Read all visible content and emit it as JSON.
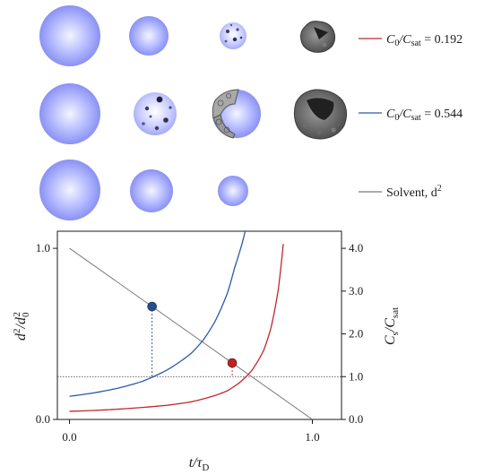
{
  "legend": [
    {
      "label_pre": "C",
      "label_sub1": "0",
      "label_mid": "/C",
      "label_sub2": "sat",
      "label_post": " = 0.192",
      "color": "#c0282b"
    },
    {
      "label_pre": "C",
      "label_sub1": "0",
      "label_mid": "/C",
      "label_sub2": "sat",
      "label_post": " = 0.544",
      "color": "#2a5aa6"
    },
    {
      "label_pre": "Solvent, d",
      "label_sup": "2",
      "color": "#7a7a7a"
    }
  ],
  "droplet_rows": [
    {
      "series": "C0/Csat = 0.192",
      "stages": [
        "smooth",
        "smooth",
        "mottled",
        "shell-cavity"
      ]
    },
    {
      "series": "C0/Csat = 0.544",
      "stages": [
        "smooth",
        "mottled",
        "cracked-shell",
        "open-shell"
      ]
    },
    {
      "series": "Solvent",
      "stages": [
        "smooth",
        "smooth",
        "smooth"
      ]
    }
  ],
  "chart_data": {
    "type": "line",
    "xlabel": {
      "main": "t/τ",
      "sub": "D"
    },
    "ylabel_left": {
      "a": "d",
      "a_sup": "2",
      "b": "/d",
      "b_sub": "0",
      "b_sup": "2"
    },
    "ylabel_right": {
      "a": "C",
      "a_sub": "s",
      "b": "/C",
      "b_sub": "sat"
    },
    "xlim": [
      -0.05,
      1.12
    ],
    "ylim_left": [
      0,
      1.1
    ],
    "ylim_right": [
      0,
      4.4
    ],
    "x_ticks": [
      "0.0",
      "1.0"
    ],
    "y_left_ticks": [
      "0.0",
      "1.0"
    ],
    "y_right_ticks": [
      "0.0",
      "1.0",
      "2.0",
      "3.0",
      "4.0"
    ],
    "series": [
      {
        "name": "Solvent, d²",
        "axis": "left",
        "color": "#7a7a7a",
        "x": [
          0.0,
          1.0
        ],
        "y": [
          1.0,
          0.0
        ]
      },
      {
        "name": "C0/Csat = 0.544",
        "axis": "right",
        "color": "#2a5aa6",
        "x": [
          0.0,
          0.1,
          0.2,
          0.3,
          0.4,
          0.5,
          0.55,
          0.6,
          0.65,
          0.68,
          0.71,
          0.74
        ],
        "y": [
          0.54,
          0.62,
          0.73,
          0.89,
          1.15,
          1.54,
          1.85,
          2.3,
          2.95,
          3.55,
          4.1,
          4.8
        ]
      },
      {
        "name": "C0/Csat = 0.192",
        "axis": "right",
        "color": "#c0282b",
        "x": [
          0.0,
          0.1,
          0.2,
          0.3,
          0.4,
          0.5,
          0.6,
          0.65,
          0.7,
          0.75,
          0.8,
          0.83,
          0.86,
          0.88
        ],
        "y": [
          0.19,
          0.21,
          0.24,
          0.28,
          0.33,
          0.41,
          0.56,
          0.67,
          0.86,
          1.14,
          1.62,
          2.15,
          3.05,
          4.1
        ]
      }
    ],
    "markers": [
      {
        "series": "C0/Csat = 0.544",
        "x": 0.34,
        "y_left": 0.66,
        "color": "#1f4f97"
      },
      {
        "series": "C0/Csat = 0.192",
        "x": 0.67,
        "y_left": 0.33,
        "color": "#c81e1e"
      }
    ],
    "reference_line": {
      "axis": "right",
      "y": 1.0
    }
  }
}
